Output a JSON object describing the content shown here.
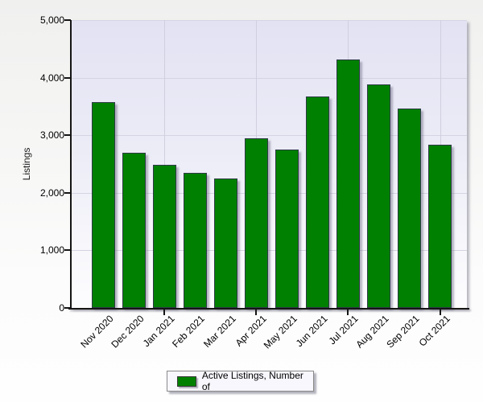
{
  "chart_data": {
    "type": "bar",
    "title": "",
    "categories": [
      "Nov 2020",
      "Dec 2020",
      "Jan 2021",
      "Feb 2021",
      "Mar 2021",
      "Apr 2021",
      "May 2021",
      "Jun 2021",
      "Jul 2021",
      "Aug 2021",
      "Sep 2021",
      "Oct 2021"
    ],
    "series": [
      {
        "name": "Active Listings, Number of",
        "values": [
          3570,
          2700,
          2490,
          2350,
          2250,
          2940,
          2750,
          3670,
          4310,
          3880,
          3460,
          2840
        ]
      }
    ],
    "xlabel": "",
    "ylabel": "Listings",
    "ylim": [
      0,
      5000
    ],
    "ytick_interval": 1000,
    "ytick_labels": [
      "0",
      "1,000",
      "2,000",
      "3,000",
      "4,000",
      "5,000"
    ],
    "grid": true,
    "vertical_gridline_categories": [
      "Jan 2021",
      "Apr 2021",
      "Jul 2021",
      "Oct 2021"
    ],
    "legend_position": "bottom-center",
    "bar_color": "#008000"
  },
  "y_axis": {
    "title": "Listings"
  },
  "legend": {
    "label": "Active Listings, Number of",
    "swatch_color": "#008000"
  },
  "colors": {
    "bar": "#008000",
    "bar_border": "#2f3b47",
    "plot_bg_top": "#e2e2f3",
    "plot_bg_bottom": "#fdfdff",
    "gridline": "#d4d4e3",
    "axis": "#151515",
    "page_bg_top": "#f0f0ef",
    "page_bg_bottom": "#fefefe",
    "legend_bg": "#f7f7fd",
    "legend_border": "#8a8a8a"
  }
}
